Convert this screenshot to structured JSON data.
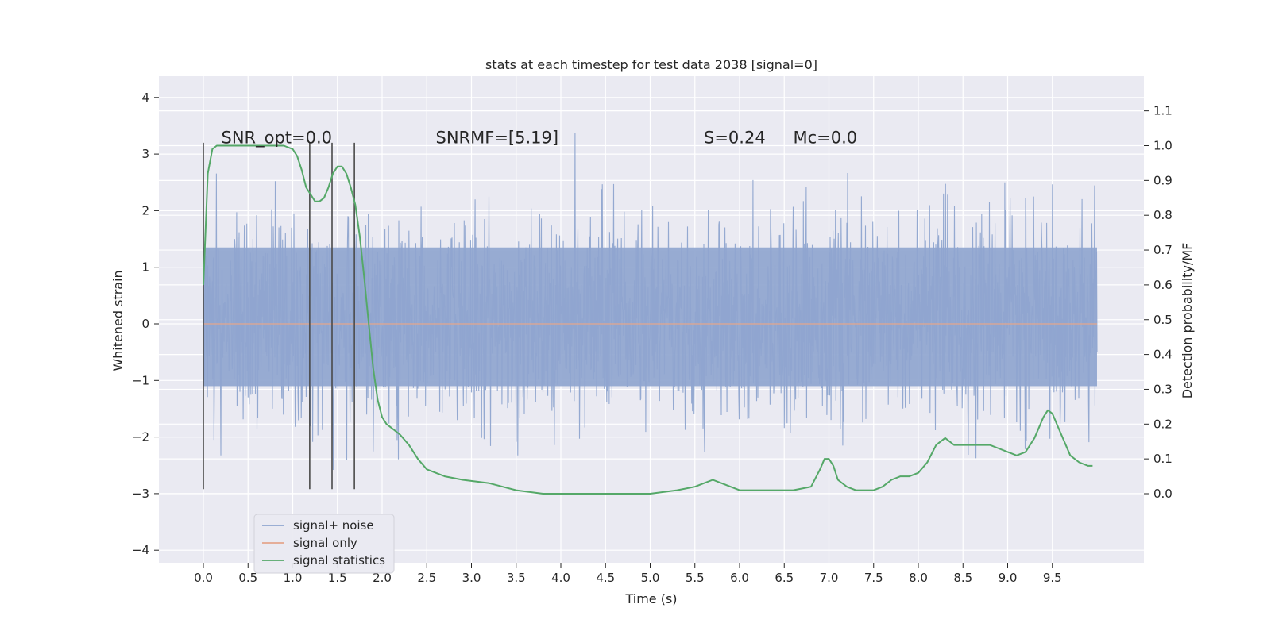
{
  "chart_data": {
    "type": "line",
    "title": "stats at each timestep for test data 2038 [signal=0]",
    "xlabel": "Time (s)",
    "ylabel": "Whitened strain",
    "ylabel_right": "Detection probability/MF",
    "xlim": [
      -0.5,
      10.5
    ],
    "ylim": [
      -4.2,
      4.4
    ],
    "ylim_right": [
      -0.2,
      1.17
    ],
    "x_ticks": [
      "0.0",
      "0.5",
      "1.0",
      "1.5",
      "2.0",
      "2.5",
      "3.0",
      "3.5",
      "4.0",
      "4.5",
      "5.0",
      "5.5",
      "6.0",
      "6.5",
      "7.0",
      "7.5",
      "8.0",
      "8.5",
      "9.0",
      "9.5"
    ],
    "y_ticks": [
      "−4",
      "−3",
      "−2",
      "−1",
      "0",
      "1",
      "2",
      "3",
      "4"
    ],
    "y_ticks_right": [
      "0.0",
      "0.1",
      "0.2",
      "0.3",
      "0.4",
      "0.5",
      "0.6",
      "0.7",
      "0.8",
      "0.9",
      "1.0",
      "1.1"
    ],
    "grid": true,
    "legend_position": "lower-left",
    "annotations": [
      {
        "text": "SNR_opt=0.0",
        "x": 0.2,
        "y": 3.3
      },
      {
        "text": "SNRMF=[5.19]",
        "x": 2.6,
        "y": 3.3
      },
      {
        "text": "S=0.24",
        "x": 5.6,
        "y": 3.3
      },
      {
        "text": "Mc=0.0",
        "x": 6.6,
        "y": 3.3
      }
    ],
    "vertical_markers": [
      0.0,
      1.19,
      1.44,
      1.69
    ],
    "marker_range": [
      -2.92,
      3.2
    ],
    "series": [
      {
        "name": "signal+ noise",
        "color": "#8fa5cf",
        "axis": "left",
        "description_values": "noise band approx [-1.2, 1.4] with spikes",
        "x_range": [
          0.0,
          10.0
        ],
        "envelope_core": [
          -1.1,
          1.35
        ]
      },
      {
        "name": "signal only",
        "color": "#e4a68c",
        "axis": "left",
        "x": [
          0.0,
          10.0
        ],
        "y": [
          0.0,
          0.0
        ]
      },
      {
        "name": "signal statistics",
        "color": "#55a868",
        "axis": "right",
        "x": [
          0.0,
          0.05,
          0.1,
          0.15,
          0.2,
          0.3,
          0.5,
          0.7,
          0.9,
          1.0,
          1.05,
          1.1,
          1.15,
          1.2,
          1.25,
          1.3,
          1.35,
          1.4,
          1.45,
          1.5,
          1.55,
          1.6,
          1.65,
          1.7,
          1.75,
          1.8,
          1.85,
          1.9,
          1.95,
          2.0,
          2.05,
          2.1,
          2.2,
          2.3,
          2.4,
          2.5,
          2.7,
          2.9,
          3.2,
          3.5,
          3.8,
          4.0,
          4.5,
          5.0,
          5.3,
          5.5,
          5.6,
          5.7,
          5.8,
          6.0,
          6.3,
          6.6,
          6.8,
          6.9,
          6.95,
          7.0,
          7.05,
          7.1,
          7.2,
          7.3,
          7.4,
          7.5,
          7.6,
          7.7,
          7.8,
          7.9,
          8.0,
          8.1,
          8.2,
          8.3,
          8.4,
          8.5,
          8.6,
          8.7,
          8.8,
          8.9,
          9.0,
          9.1,
          9.2,
          9.3,
          9.4,
          9.45,
          9.5,
          9.6,
          9.7,
          9.8,
          9.9,
          9.95
        ],
        "y": [
          0.6,
          0.92,
          0.99,
          1.0,
          1.0,
          1.0,
          1.0,
          1.0,
          1.0,
          0.99,
          0.97,
          0.93,
          0.88,
          0.86,
          0.84,
          0.84,
          0.85,
          0.88,
          0.92,
          0.94,
          0.94,
          0.92,
          0.88,
          0.83,
          0.74,
          0.62,
          0.49,
          0.36,
          0.27,
          0.22,
          0.2,
          0.19,
          0.17,
          0.14,
          0.1,
          0.07,
          0.05,
          0.04,
          0.03,
          0.01,
          0.0,
          0.0,
          0.0,
          0.0,
          0.01,
          0.02,
          0.03,
          0.04,
          0.03,
          0.01,
          0.01,
          0.01,
          0.02,
          0.07,
          0.1,
          0.1,
          0.08,
          0.04,
          0.02,
          0.01,
          0.01,
          0.01,
          0.02,
          0.04,
          0.05,
          0.05,
          0.06,
          0.09,
          0.14,
          0.16,
          0.14,
          0.14,
          0.14,
          0.14,
          0.14,
          0.13,
          0.12,
          0.11,
          0.12,
          0.16,
          0.22,
          0.24,
          0.23,
          0.17,
          0.11,
          0.09,
          0.08,
          0.08
        ]
      }
    ]
  }
}
